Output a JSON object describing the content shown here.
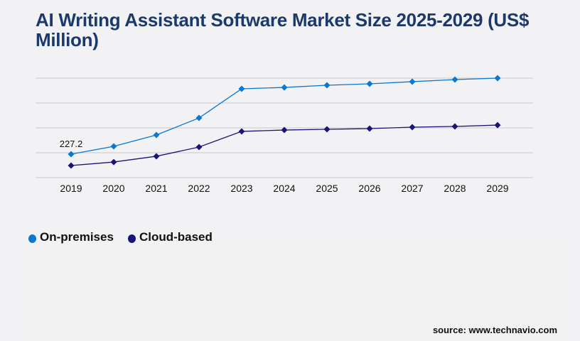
{
  "title": "AI Writing Assistant Software Market Size 2025-2029 (US$ Million)",
  "source": "source: www.technavio.com",
  "chart_data": {
    "type": "line",
    "title": "AI Writing Assistant Software Market Size 2025-2029 (US$ Million)",
    "x": [
      "2019",
      "2020",
      "2021",
      "2022",
      "2023",
      "2024",
      "2025",
      "2026",
      "2027",
      "2028",
      "2029"
    ],
    "series": [
      {
        "name": "On-premises",
        "color": "#0a77d1",
        "values": [
          227.2,
          303,
          413,
          578,
          861,
          874,
          895,
          909,
          930,
          950,
          964
        ]
      },
      {
        "name": "Cloud-based",
        "color": "#1a1478",
        "values": [
          117,
          151,
          207,
          296,
          448,
          461,
          468,
          475,
          489,
          496,
          509
        ]
      }
    ],
    "data_labels": [
      {
        "series": "On-premises",
        "x": "2019",
        "text": "227.2"
      }
    ],
    "ylim": [
      0,
      964
    ],
    "y_gridlines": 5,
    "y_tick_labels_shown": false,
    "grid": true,
    "legend": "bottom-left"
  }
}
